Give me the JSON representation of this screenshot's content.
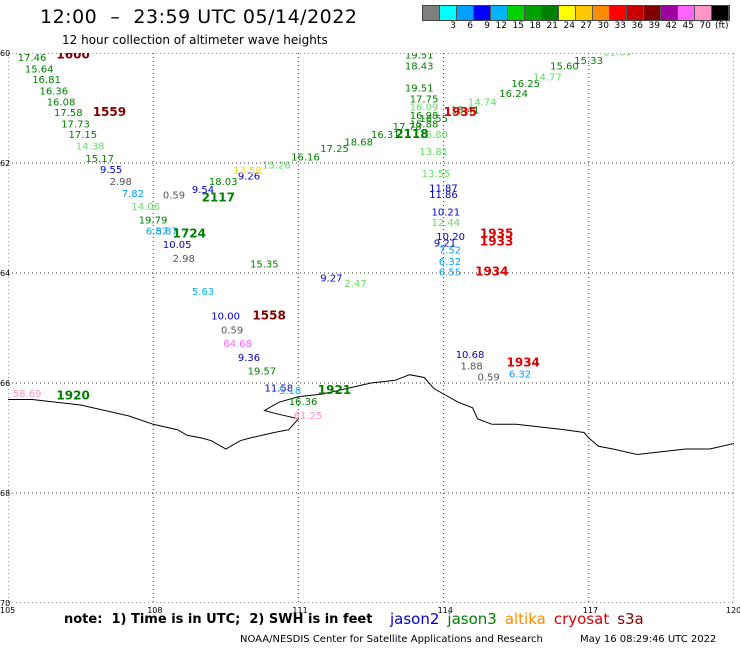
{
  "header": {
    "title": "12:00  –  23:59 UTC 05/14/2022",
    "subtitle": "12 hour collection of altimeter wave heights"
  },
  "colorbar": {
    "colors": [
      "#7f7f7f",
      "#00ffff",
      "#00a0ff",
      "#0000ff",
      "#00b4ff",
      "#00d200",
      "#00a000",
      "#008000",
      "#ffff00",
      "#ffc800",
      "#ff8c00",
      "#ff0000",
      "#c80000",
      "#800000",
      "#a000a0",
      "#ff64ff",
      "#ff96c8",
      "#000000"
    ],
    "labels": [
      "3",
      "6",
      "9",
      "12",
      "15",
      "18",
      "21",
      "24",
      "27",
      "30",
      "33",
      "36",
      "39",
      "42",
      "45",
      "70"
    ],
    "unit": "(ft)"
  },
  "footer": {
    "note": "note:  1) Time is in UTC;  2) SWH is in feet",
    "legend": [
      {
        "name": "jason2",
        "color": "#0000cc"
      },
      {
        "name": "jason3",
        "color": "#008000"
      },
      {
        "name": "altika",
        "color": "#ff8c00"
      },
      {
        "name": "cryosat",
        "color": "#e00000"
      },
      {
        "name": "s3a",
        "color": "#800000"
      }
    ],
    "credit": "NOAA/NESDIS Center for Satellite Applications and Research",
    "timestamp": "May 16 08:29:46 UTC 2022"
  },
  "chart_data": {
    "type": "scatter",
    "xlim": [
      -105,
      -120
    ],
    "ylim": [
      -60,
      -70
    ],
    "x_ticks": [
      "105",
      "108",
      "111",
      "114",
      "117",
      "120"
    ],
    "y_ticks": [
      "60",
      "62",
      "64",
      "66",
      "68",
      "70"
    ],
    "grid": true,
    "coastline": [
      [
        -105,
        -66.3
      ],
      [
        -105.5,
        -66.3
      ],
      [
        -106,
        -66.35
      ],
      [
        -106.5,
        -66.4
      ],
      [
        -107,
        -66.5
      ],
      [
        -107.5,
        -66.6
      ],
      [
        -108,
        -66.75
      ],
      [
        -108.5,
        -66.85
      ],
      [
        -108.7,
        -66.95
      ],
      [
        -109,
        -67
      ],
      [
        -109.2,
        -67.05
      ],
      [
        -109.5,
        -67.2
      ],
      [
        -109.8,
        -67.05
      ],
      [
        -110,
        -67
      ],
      [
        -110.5,
        -66.9
      ],
      [
        -110.8,
        -66.85
      ],
      [
        -111,
        -66.65
      ],
      [
        -110.5,
        -66.55
      ],
      [
        -110.3,
        -66.5
      ],
      [
        -110.6,
        -66.35
      ],
      [
        -111,
        -66.25
      ],
      [
        -111.5,
        -66.2
      ],
      [
        -112,
        -66.1
      ],
      [
        -112.5,
        -66
      ],
      [
        -113,
        -65.95
      ],
      [
        -113.3,
        -65.85
      ],
      [
        -113.6,
        -65.9
      ],
      [
        -113.8,
        -66.1
      ],
      [
        -114,
        -66.2
      ],
      [
        -114.3,
        -66.35
      ],
      [
        -114.6,
        -66.45
      ],
      [
        -114.7,
        -66.65
      ],
      [
        -115,
        -66.75
      ],
      [
        -115.5,
        -66.75
      ],
      [
        -116,
        -66.8
      ],
      [
        -116.5,
        -66.85
      ],
      [
        -116.9,
        -66.9
      ],
      [
        -117,
        -67
      ],
      [
        -117.2,
        -67.15
      ],
      [
        -117.5,
        -67.2
      ],
      [
        -118,
        -67.3
      ],
      [
        -118.5,
        -67.25
      ],
      [
        -119,
        -67.2
      ],
      [
        -119.5,
        -67.2
      ],
      [
        -120,
        -67.1
      ]
    ],
    "points": [
      {
        "x": -105.2,
        "y": -60.15,
        "label": "17.46",
        "color": "#008000"
      },
      {
        "x": -105.35,
        "y": -60.35,
        "label": "15.64",
        "color": "#008000"
      },
      {
        "x": -105.5,
        "y": -60.55,
        "label": "16.81",
        "color": "#008000"
      },
      {
        "x": -105.65,
        "y": -60.75,
        "label": "16.36",
        "color": "#008000"
      },
      {
        "x": -105.8,
        "y": -60.95,
        "label": "16.08",
        "color": "#008000"
      },
      {
        "x": -105.95,
        "y": -61.15,
        "label": "17.58",
        "color": "#008000"
      },
      {
        "x": -106.1,
        "y": -61.35,
        "label": "17.73",
        "color": "#008000"
      },
      {
        "x": -106.25,
        "y": -61.55,
        "label": "17.15",
        "color": "#008000"
      },
      {
        "x": -106.4,
        "y": -61.75,
        "label": "14.38",
        "color": "#66dd66"
      },
      {
        "x": -106.6,
        "y": -61.98,
        "label": "15.17",
        "color": "#008000"
      },
      {
        "x": -106.9,
        "y": -62.18,
        "label": "9.55",
        "color": "#0000cc"
      },
      {
        "x": -107.1,
        "y": -62.4,
        "label": "2.98",
        "color": "#555555"
      },
      {
        "x": -107.35,
        "y": -62.62,
        "label": "7.82",
        "color": "#00a0ff"
      },
      {
        "x": -107.55,
        "y": -62.85,
        "label": "14.06",
        "color": "#66dd66"
      },
      {
        "x": -107.7,
        "y": -63.1,
        "label": "19.79",
        "color": "#008000"
      },
      {
        "x": -107.85,
        "y": -63.3,
        "label": "6.87",
        "color": "#00a0ff"
      },
      {
        "x": -108.05,
        "y": -63.3,
        "label": "5.87",
        "color": "#00a0ff"
      },
      {
        "x": -108.2,
        "y": -63.55,
        "label": "10.05",
        "color": "#0000cc"
      },
      {
        "x": -108.4,
        "y": -63.8,
        "label": "2.98",
        "color": "#555555"
      },
      {
        "x": -108.2,
        "y": -62.65,
        "label": "0.59",
        "color": "#555555"
      },
      {
        "x": -108.8,
        "y": -62.55,
        "label": "9.54",
        "color": "#0000cc"
      },
      {
        "x": -109.15,
        "y": -62.4,
        "label": "18.03",
        "color": "#008000"
      },
      {
        "x": -109.75,
        "y": -62.3,
        "label": "9.26",
        "color": "#0000cc"
      },
      {
        "x": -109.65,
        "y": -62.2,
        "label": "13.58",
        "color": "#ffd700"
      },
      {
        "x": -110.25,
        "y": -62.1,
        "label": "15.26",
        "color": "#66dd66"
      },
      {
        "x": -110.85,
        "y": -61.95,
        "label": "16.16",
        "color": "#008000"
      },
      {
        "x": -111.45,
        "y": -61.8,
        "label": "17.25",
        "color": "#008000"
      },
      {
        "x": -111.95,
        "y": -61.68,
        "label": "18.68",
        "color": "#008000"
      },
      {
        "x": -112.5,
        "y": -61.55,
        "label": "16.31",
        "color": "#008000"
      },
      {
        "x": -112.95,
        "y": -61.4,
        "label": "17.78",
        "color": "#008000"
      },
      {
        "x": -113.5,
        "y": -61.25,
        "label": "16.55",
        "color": "#008000"
      },
      {
        "x": -114.15,
        "y": -61.1,
        "label": "15.41",
        "color": "#008000"
      },
      {
        "x": -114.5,
        "y": -60.95,
        "label": "14.74",
        "color": "#66dd66"
      },
      {
        "x": -115.4,
        "y": -60.62,
        "label": "16.25",
        "color": "#008000"
      },
      {
        "x": -115.15,
        "y": -60.8,
        "label": "16.24",
        "color": "#008000"
      },
      {
        "x": -115.85,
        "y": -60.5,
        "label": "14.77",
        "color": "#66dd66"
      },
      {
        "x": -116.2,
        "y": -60.3,
        "label": "15.60",
        "color": "#008000"
      },
      {
        "x": -116.7,
        "y": -60.2,
        "label": "15.33",
        "color": "#008000"
      },
      {
        "x": -117.3,
        "y": -60.05,
        "label": "11.69",
        "color": "#66dd66"
      },
      {
        "x": -113.2,
        "y": -60.1,
        "label": "19.51",
        "color": "#008000"
      },
      {
        "x": -113.2,
        "y": -60.3,
        "label": "18.43",
        "color": "#008000"
      },
      {
        "x": -113.2,
        "y": -60.7,
        "label": "19.51",
        "color": "#008000"
      },
      {
        "x": -113.3,
        "y": -60.9,
        "label": "17.75",
        "color": "#008000"
      },
      {
        "x": -113.3,
        "y": -61.05,
        "label": "16.09",
        "color": "#66dd66"
      },
      {
        "x": -113.3,
        "y": -61.2,
        "label": "16.98",
        "color": "#008000"
      },
      {
        "x": -113.3,
        "y": -61.35,
        "label": "15.88",
        "color": "#008000"
      },
      {
        "x": -113.5,
        "y": -61.55,
        "label": "15.80",
        "color": "#66dd66"
      },
      {
        "x": -113.5,
        "y": -61.85,
        "label": "13.81",
        "color": "#66dd66"
      },
      {
        "x": -113.55,
        "y": -62.25,
        "label": "13.55",
        "color": "#66dd66"
      },
      {
        "x": -113.7,
        "y": -62.52,
        "label": "11.87",
        "color": "#0000cc"
      },
      {
        "x": -113.7,
        "y": -62.64,
        "label": "11.86",
        "color": "#0000cc"
      },
      {
        "x": -113.75,
        "y": -62.95,
        "label": "10.21",
        "color": "#0000cc"
      },
      {
        "x": -113.75,
        "y": -63.15,
        "label": "12.44",
        "color": "#66dd66"
      },
      {
        "x": -113.85,
        "y": -63.4,
        "label": "10.20",
        "color": "#0000cc"
      },
      {
        "x": -113.8,
        "y": -63.52,
        "label": "9.21",
        "color": "#0000cc"
      },
      {
        "x": -113.9,
        "y": -63.65,
        "label": "7.52",
        "color": "#00a0ff"
      },
      {
        "x": -113.9,
        "y": -63.85,
        "label": "6.32",
        "color": "#00a0ff"
      },
      {
        "x": -113.9,
        "y": -64.05,
        "label": "6.55",
        "color": "#00a0ff"
      },
      {
        "x": -110.0,
        "y": -63.9,
        "label": "15.35",
        "color": "#008000"
      },
      {
        "x": -111.45,
        "y": -64.15,
        "label": "9.27",
        "color": "#0000cc"
      },
      {
        "x": -111.95,
        "y": -64.25,
        "label": "2.47",
        "color": "#66dd66"
      },
      {
        "x": -108.8,
        "y": -64.4,
        "label": "5.63",
        "color": "#00b4ff"
      },
      {
        "x": -109.2,
        "y": -64.85,
        "label": "10.00",
        "color": "#0000cc"
      },
      {
        "x": -109.4,
        "y": -65.1,
        "label": "0.59",
        "color": "#555555"
      },
      {
        "x": -109.45,
        "y": -65.35,
        "label": "64.68",
        "color": "#ff64ff"
      },
      {
        "x": -109.75,
        "y": -65.6,
        "label": "9.36",
        "color": "#0000cc"
      },
      {
        "x": -109.95,
        "y": -65.85,
        "label": "19.57",
        "color": "#008000"
      },
      {
        "x": -110.3,
        "y": -66.15,
        "label": "11.58",
        "color": "#0000cc"
      },
      {
        "x": -110.6,
        "y": -66.2,
        "label": "5.18",
        "color": "#00b4ff"
      },
      {
        "x": -110.8,
        "y": -66.4,
        "label": "16.36",
        "color": "#008000"
      },
      {
        "x": -110.9,
        "y": -66.65,
        "label": "61.25",
        "color": "#ff96c8"
      },
      {
        "x": -105.1,
        "y": -66.25,
        "label": "58.69",
        "color": "#ff96c8"
      },
      {
        "x": -114.25,
        "y": -65.55,
        "label": "10.68",
        "color": "#0000cc"
      },
      {
        "x": -114.35,
        "y": -65.75,
        "label": "1.88",
        "color": "#555555"
      },
      {
        "x": -114.7,
        "y": -65.95,
        "label": "0.59",
        "color": "#555555"
      },
      {
        "x": -115.35,
        "y": -65.9,
        "label": "6.32",
        "color": "#00a0ff"
      }
    ],
    "time_labels": [
      {
        "x": -106.0,
        "y": -60.1,
        "label": "1600",
        "color": "#800000"
      },
      {
        "x": -106.75,
        "y": -61.15,
        "label": "1559",
        "color": "#800000"
      },
      {
        "x": -109.0,
        "y": -62.7,
        "label": "2117",
        "color": "#008000"
      },
      {
        "x": -108.4,
        "y": -63.35,
        "label": "1724",
        "color": "#008000"
      },
      {
        "x": -113.0,
        "y": -61.55,
        "label": "2118",
        "color": "#008000"
      },
      {
        "x": -114.0,
        "y": -61.15,
        "label": "1935",
        "color": "#e00000"
      },
      {
        "x": -114.75,
        "y": -63.35,
        "label": "1935",
        "color": "#e00000"
      },
      {
        "x": -114.75,
        "y": -63.5,
        "label": "1933",
        "color": "#e00000"
      },
      {
        "x": -114.65,
        "y": -64.05,
        "label": "1934",
        "color": "#e00000"
      },
      {
        "x": -110.05,
        "y": -64.85,
        "label": "1558",
        "color": "#800000"
      },
      {
        "x": -115.3,
        "y": -65.7,
        "label": "1934",
        "color": "#e00000"
      },
      {
        "x": -111.4,
        "y": -66.2,
        "label": "1921",
        "color": "#008000"
      },
      {
        "x": -106.0,
        "y": -66.3,
        "label": "1920",
        "color": "#008000"
      }
    ]
  }
}
